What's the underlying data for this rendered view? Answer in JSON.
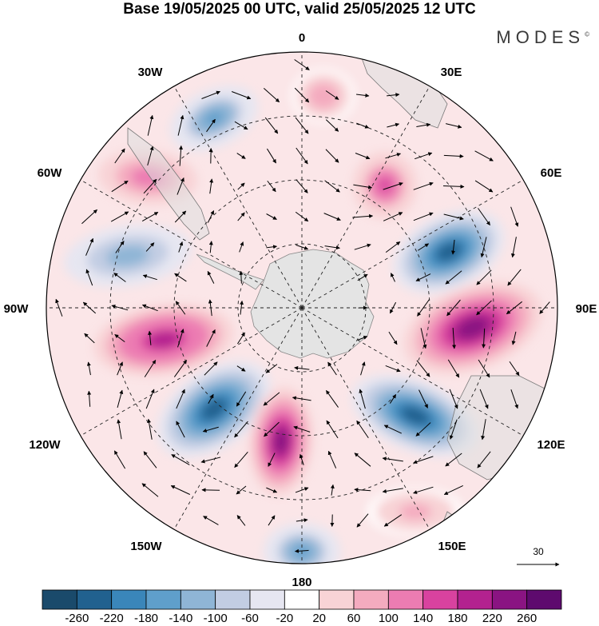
{
  "title": "Base 19/05/2025 00 UTC, valid 25/05/2025 12 UTC",
  "brand": "MODES",
  "brand_mark": "©",
  "longitude_labels": {
    "lon_0": "0",
    "lon_30e": "30E",
    "lon_60e": "60E",
    "lon_90e": "90E",
    "lon_120e": "120E",
    "lon_150e": "150E",
    "lon_180": "180",
    "lon_150w": "150W",
    "lon_120w": "120W",
    "lon_90w": "90W",
    "lon_60w": "60W",
    "lon_30w": "30W"
  },
  "vector_reference": {
    "label": "30"
  },
  "colorbar": {
    "labels": [
      "-260",
      "-220",
      "-180",
      "-140",
      "-100",
      "-60",
      "-20",
      "20",
      "60",
      "100",
      "140",
      "180",
      "220",
      "260"
    ],
    "colors": [
      "#1a4a6b",
      "#21618f",
      "#3a86ba",
      "#5f9fcb",
      "#8fb5d6",
      "#c2cde3",
      "#e6e6f1",
      "#ffffff",
      "#f8d3d6",
      "#f4abbf",
      "#ec7cb2",
      "#d9429f",
      "#b3228f",
      "#8a1482",
      "#5e0a6e"
    ]
  },
  "anomaly_centers": [
    {
      "name": "low-30w",
      "value": -150
    },
    {
      "name": "high-60w",
      "value": 120
    },
    {
      "name": "low-80w",
      "value": -130
    },
    {
      "name": "high-100w",
      "value": 200
    },
    {
      "name": "low-130w",
      "value": -250
    },
    {
      "name": "high-165w",
      "value": 240
    },
    {
      "name": "low-180",
      "value": -160
    },
    {
      "name": "high-0",
      "value": 90
    },
    {
      "name": "high-25e",
      "value": 150
    },
    {
      "name": "low-65e",
      "value": -260
    },
    {
      "name": "high-95e",
      "value": 240
    },
    {
      "name": "low-130e",
      "value": -260
    },
    {
      "name": "high-150e",
      "value": 80
    }
  ]
}
